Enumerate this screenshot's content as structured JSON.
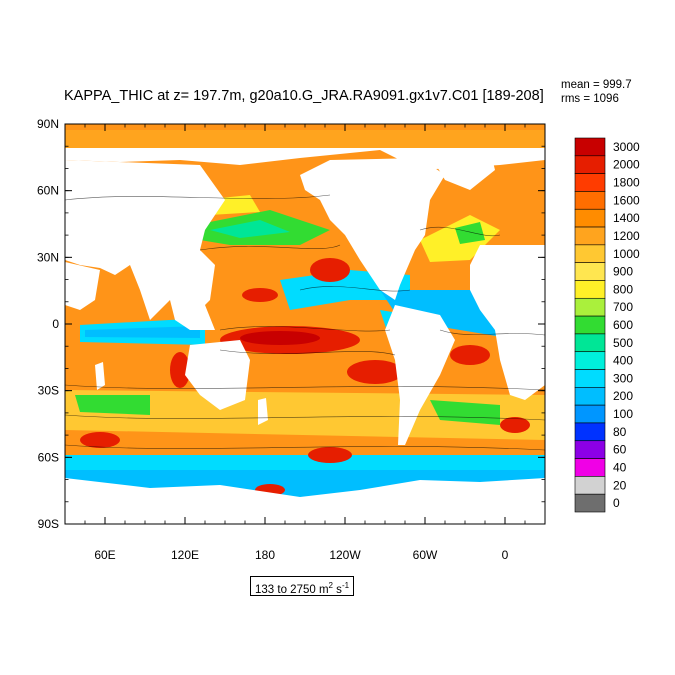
{
  "header": {
    "title": "KAPPA_THIC at z= 197.7m, g20a10.G_JRA.RA9091.gx1v7.C01 [189-208]",
    "mean": "mean = 999.7",
    "rms": "rms = 1096"
  },
  "footer": {
    "range_prefix": "133 to 2750 m",
    "range_exp1": "2",
    "range_mid": " s",
    "range_exp2": "-1"
  },
  "chart_data": {
    "type": "heatmap",
    "title": "KAPPA_THIC at z= 197.7m, g20a10.G_JRA.RA9091.gx1v7.C01 [189-208]",
    "x_ticks": [
      "60E",
      "120E",
      "180",
      "120W",
      "60W",
      "0"
    ],
    "x_tick_values": [
      60,
      120,
      180,
      240,
      300,
      360
    ],
    "xlim": [
      30,
      390
    ],
    "y_ticks": [
      "90N",
      "60N",
      "30N",
      "0",
      "30S",
      "60S",
      "90S"
    ],
    "y_tick_values": [
      90,
      60,
      30,
      0,
      -30,
      -60,
      -90
    ],
    "ylim": [
      -90,
      90
    ],
    "stats": {
      "mean": 999.7,
      "rms": 1096,
      "min": 133,
      "max": 2750,
      "units": "m2 s-1"
    },
    "colorbar": {
      "labels": [
        "3000",
        "2000",
        "1800",
        "1600",
        "1400",
        "1200",
        "1000",
        "900",
        "800",
        "700",
        "600",
        "500",
        "400",
        "300",
        "200",
        "100",
        "80",
        "60",
        "40",
        "20",
        "0"
      ],
      "colors": [
        "#c80000",
        "#e61e00",
        "#ff3c00",
        "#ff6e00",
        "#ff8c00",
        "#ffa41e",
        "#ffc832",
        "#ffe650",
        "#fff028",
        "#aaf03c",
        "#32dc32",
        "#00e696",
        "#00f0dc",
        "#00dcff",
        "#00beff",
        "#0096ff",
        "#0032ff",
        "#8c00e6",
        "#f000e6",
        "#d2d2d2",
        "#6e6e6e"
      ]
    },
    "grid": false
  }
}
